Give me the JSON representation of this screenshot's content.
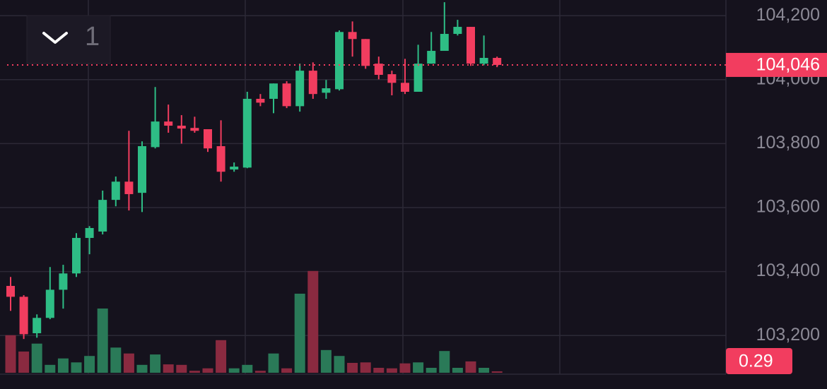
{
  "toolbar": {
    "interval": "1"
  },
  "chart_data": {
    "type": "candlestick",
    "open": [
      103355,
      103321,
      103207,
      103255,
      103343,
      103394,
      103505,
      103525,
      103624,
      103681,
      103646,
      103789,
      103869,
      103856,
      103849,
      103845,
      103792,
      103719,
      103725,
      103940,
      103940,
      103988,
      103917,
      104028,
      103959,
      103970,
      104149,
      104127,
      104050,
      104017,
      103990,
      103962,
      104050,
      104090,
      104143,
      104165,
      104050,
      104068
    ],
    "high": [
      103383,
      103326,
      103266,
      103414,
      103421,
      103520,
      103542,
      103653,
      103697,
      103840,
      103807,
      103977,
      103922,
      103889,
      103884,
      103845,
      103873,
      103741,
      103962,
      103955,
      103988,
      103995,
      104050,
      104054,
      103999,
      104154,
      104182,
      104127,
      104072,
      104028,
      104065,
      104109,
      104149,
      104242,
      104187,
      104165,
      104138,
      104072
    ],
    "low": [
      103277,
      103189,
      103193,
      103251,
      103284,
      103383,
      103454,
      103516,
      103604,
      103591,
      103586,
      103785,
      103834,
      103800,
      103834,
      103774,
      103681,
      103712,
      103723,
      103917,
      103895,
      103911,
      103900,
      103940,
      103940,
      103966,
      104072,
      104034,
      104001,
      103951,
      103955,
      103962,
      104050,
      104090,
      104138,
      104043,
      104045,
      104039
    ],
    "close": [
      103321,
      103204,
      103255,
      103343,
      103394,
      103505,
      103536,
      103624,
      103681,
      103642,
      103792,
      103869,
      103856,
      103847,
      103840,
      103785,
      103712,
      103728,
      103940,
      103928,
      103988,
      103917,
      104028,
      103955,
      103973,
      104149,
      104127,
      104043,
      104015,
      103990,
      103962,
      104050,
      104090,
      104143,
      104165,
      104050,
      104068,
      104046
    ],
    "volume": [
      7.6,
      4.3,
      5.9,
      1.6,
      2.9,
      2.1,
      3.4,
      13,
      5.1,
      3.9,
      1.6,
      3.7,
      1.7,
      1.6,
      0.4,
      0.9,
      6.6,
      0.9,
      1.6,
      0.4,
      3.9,
      0.9,
      16,
      20.6,
      4.6,
      3.4,
      2,
      2.1,
      1,
      0.9,
      1.9,
      2.1,
      1,
      4.4,
      1,
      2.3,
      1,
      0.29
    ],
    "last_price_label": "104,046",
    "ylim": [
      103079,
      104249
    ],
    "yticks": [
      {
        "value": 103200,
        "label": "103,200"
      },
      {
        "value": 103400,
        "label": "103,400"
      },
      {
        "value": 103600,
        "label": "103,600"
      },
      {
        "value": 103800,
        "label": "103,800"
      },
      {
        "value": 104000,
        "label": "104,000"
      },
      {
        "value": 104200,
        "label": "104,200"
      }
    ],
    "volume_lim": [
      0,
      22
    ],
    "up_color": "#2ebd85",
    "down_color": "#f23d5f",
    "volume_up_color": "#2a7a58",
    "volume_down_color": "#8a2a40",
    "grid": true
  }
}
